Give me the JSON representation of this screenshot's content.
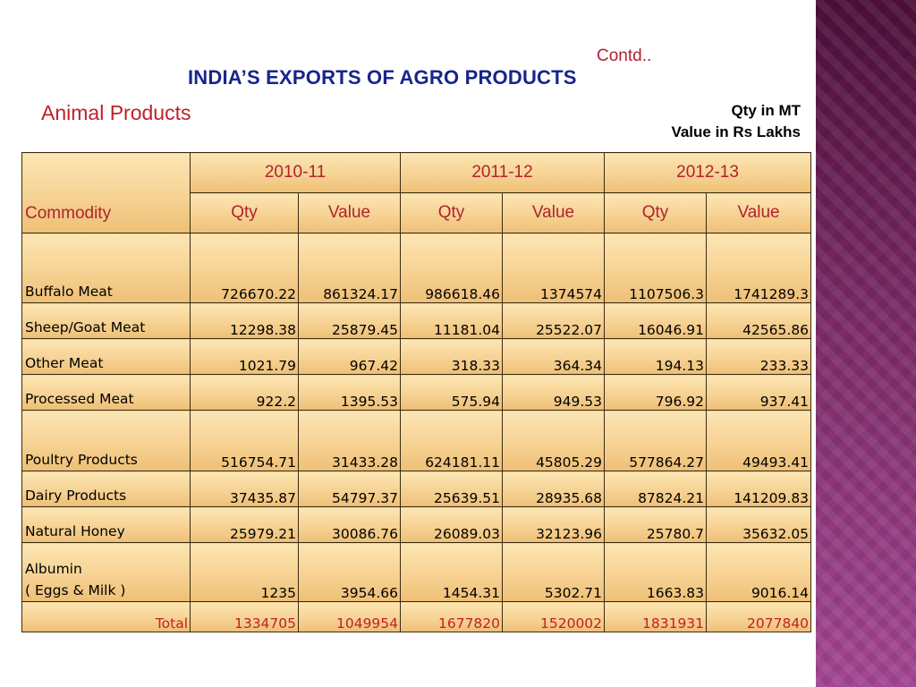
{
  "header": {
    "contd": "Contd..",
    "title": "INDIA’S EXPORTS OF AGRO PRODUCTS",
    "subtitle": "Animal Products",
    "units_qty": "Qty in MT",
    "units_value": "Value in Rs Lakhs"
  },
  "table": {
    "commodity_header": "Commodity",
    "years": [
      "2010-11",
      "2011-12",
      "2012-13"
    ],
    "sub_headers": [
      "Qty",
      "Value",
      "Qty",
      "Value",
      "Qty",
      "Value"
    ],
    "rows": [
      {
        "name_line1": "Buffalo Meat",
        "name_line2": "",
        "values": [
          "726670.22",
          "861324.17",
          "986618.46",
          "1374574",
          "1107506.3",
          "1741289.3"
        ]
      },
      {
        "name_line1": "Sheep/Goat Meat",
        "name_line2": "",
        "values": [
          "12298.38",
          "25879.45",
          "11181.04",
          "25522.07",
          "16046.91",
          "42565.86"
        ]
      },
      {
        "name_line1": "Other Meat",
        "name_line2": "",
        "values": [
          "1021.79",
          "967.42",
          "318.33",
          "364.34",
          "194.13",
          "233.33"
        ]
      },
      {
        "name_line1": "Processed Meat",
        "name_line2": "",
        "values": [
          "922.2",
          "1395.53",
          "575.94",
          "949.53",
          "796.92",
          "937.41"
        ]
      },
      {
        "name_line1": "Poultry Products",
        "name_line2": "",
        "values": [
          "516754.71",
          "31433.28",
          "624181.11",
          "45805.29",
          "577864.27",
          "49493.41"
        ]
      },
      {
        "name_line1": "Dairy Products",
        "name_line2": "",
        "values": [
          "37435.87",
          "54797.37",
          "25639.51",
          "28935.68",
          "87824.21",
          "141209.83"
        ]
      },
      {
        "name_line1": "Natural Honey",
        "name_line2": "",
        "values": [
          "25979.21",
          "30086.76",
          "26089.03",
          "32123.96",
          "25780.7",
          "35632.05"
        ]
      },
      {
        "name_line1": "Albumin",
        "name_line2": "( Eggs & Milk )",
        "values": [
          "1235",
          "3954.66",
          "1454.31",
          "5302.71",
          "1663.83",
          "9016.14"
        ]
      }
    ],
    "total_label": "Total",
    "totals": [
      "1334705",
      "1049954",
      "1677820",
      "1520002",
      "1831931",
      "2077840"
    ]
  },
  "theme": {
    "title_color": "#17258b",
    "accent_red": "#c0202a",
    "cell_gold": "#f6d293",
    "side_band_purple": "#7a2a66"
  }
}
